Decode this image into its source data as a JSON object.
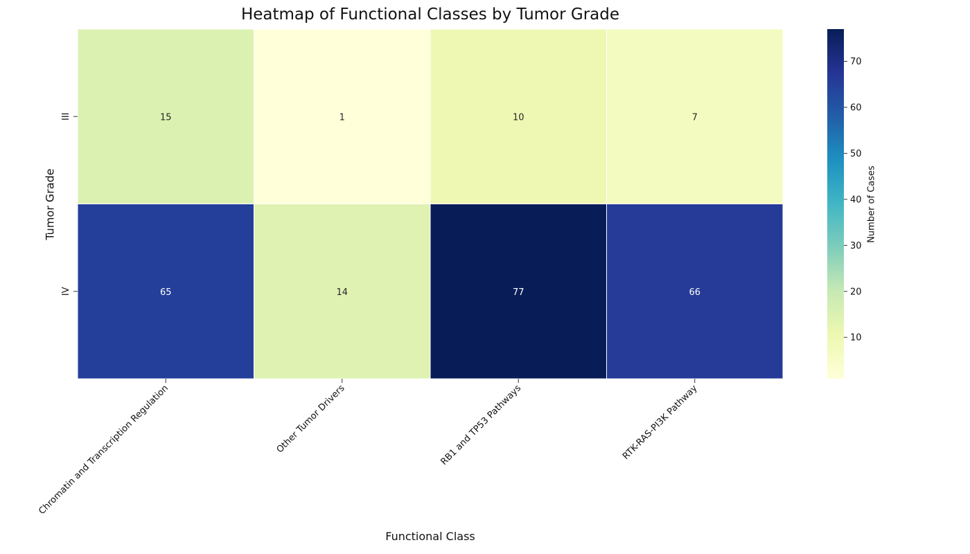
{
  "chart_data": {
    "type": "heatmap",
    "title": "Heatmap of Functional Classes by Tumor Grade",
    "xlabel": "Functional Class",
    "ylabel": "Tumor Grade",
    "x_categories": [
      "Chromatin and Transcription Regulation",
      "Other Tumor Drivers",
      "RB1 and TP53 Pathways",
      "RTK-RAS-PI3K Pathway"
    ],
    "y_categories": [
      "III",
      "IV"
    ],
    "values": [
      [
        15,
        1,
        10,
        7
      ],
      [
        65,
        14,
        77,
        66
      ]
    ],
    "annotations": true,
    "colormap": "YlGnBu",
    "colormap_stops": [
      "#ffffd9",
      "#edf8b1",
      "#c7e9b4",
      "#7fcdbb",
      "#41b6c4",
      "#1d91c0",
      "#225ea8",
      "#253494",
      "#081d58"
    ],
    "vmin": 1,
    "vmax": 77,
    "colorbar": {
      "label": "Number of Cases",
      "ticks": [
        10,
        20,
        30,
        40,
        50,
        60,
        70
      ]
    }
  }
}
